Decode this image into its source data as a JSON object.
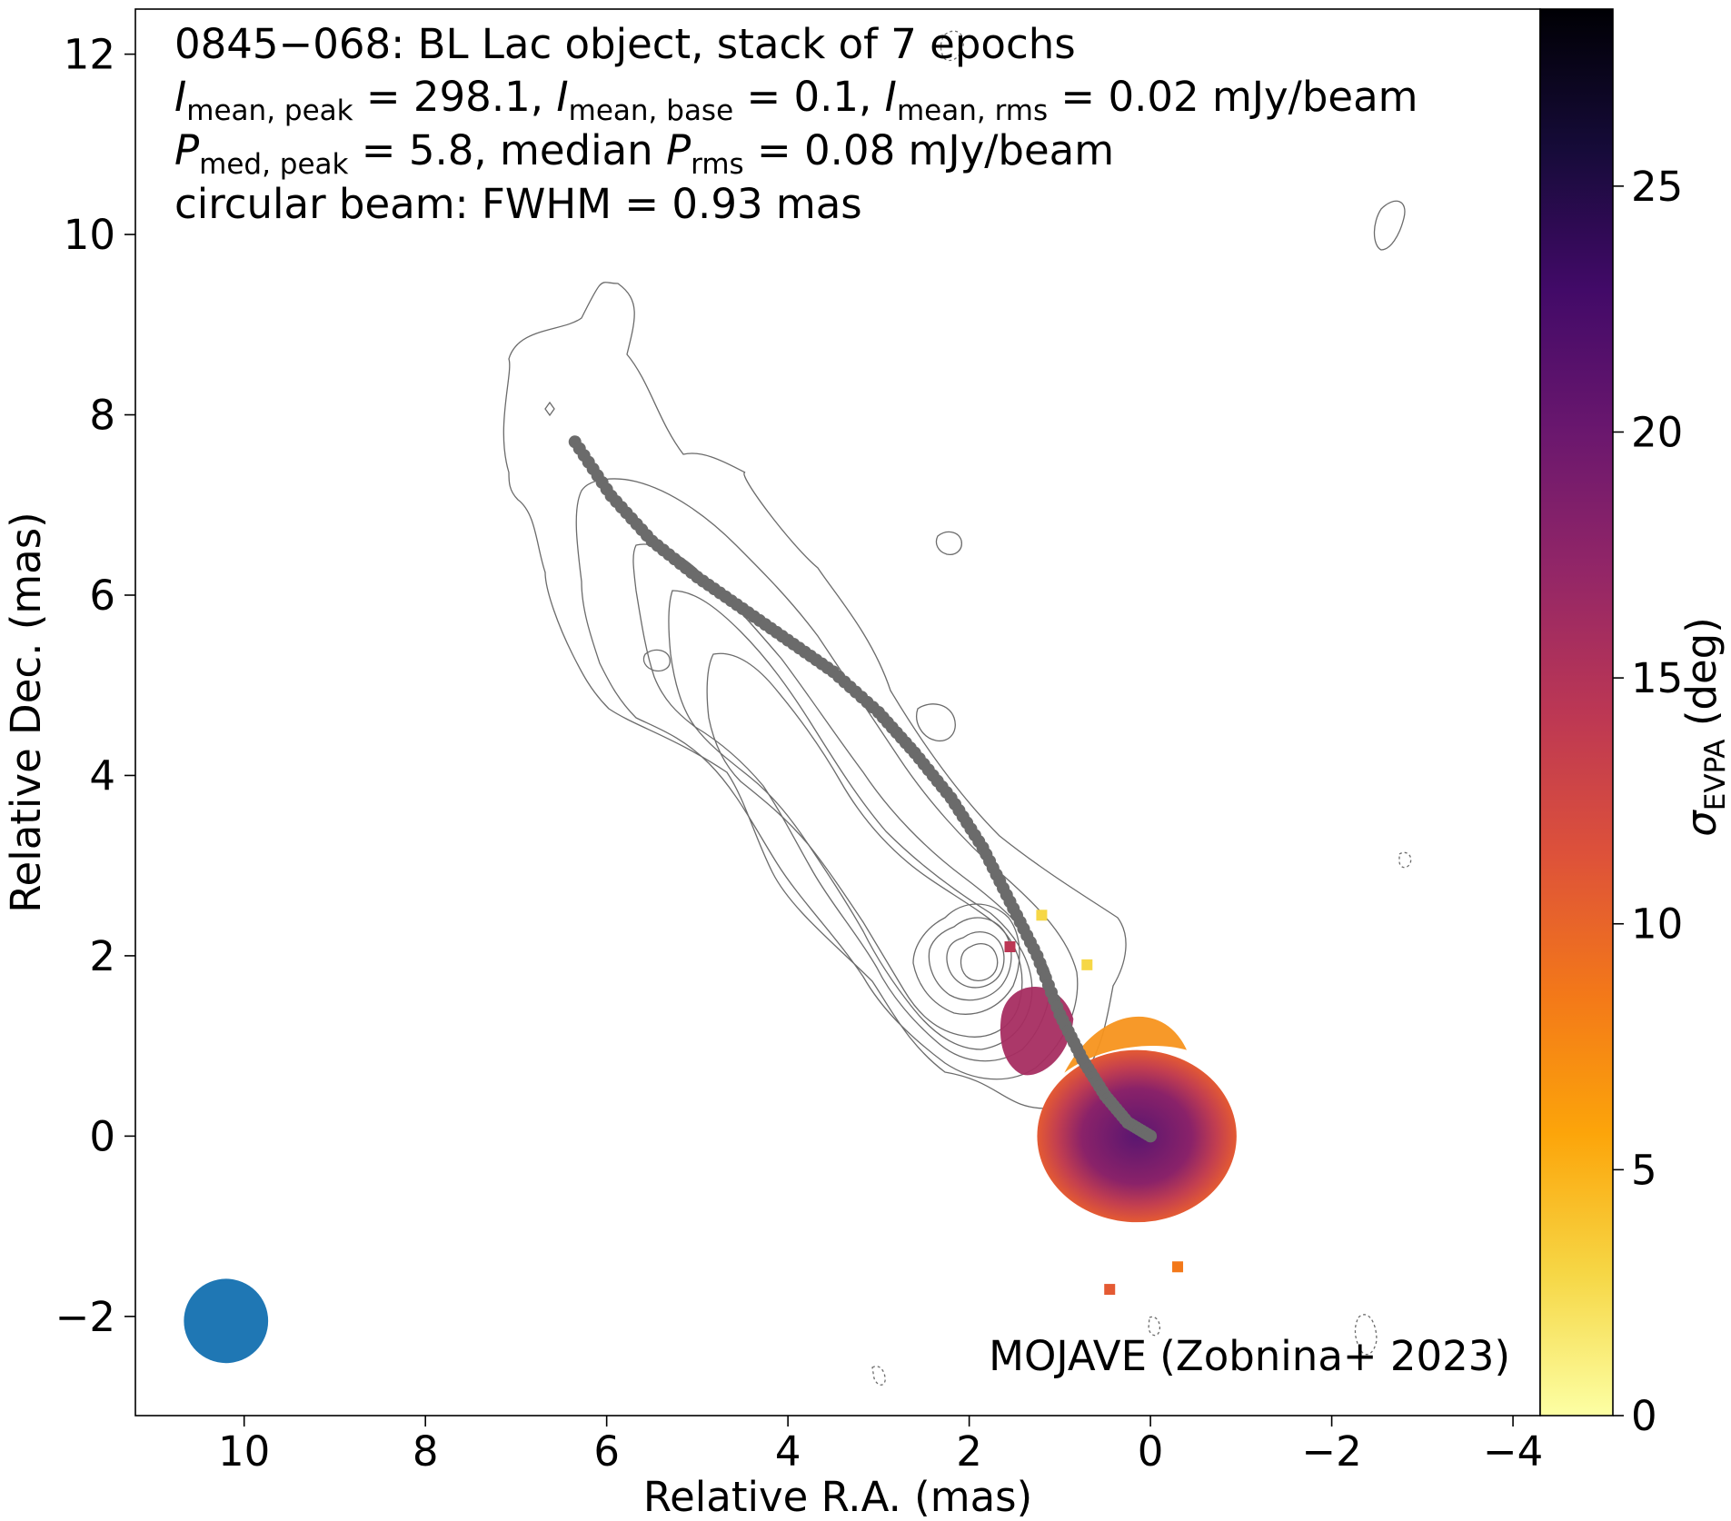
{
  "chart_data": {
    "type": "heatmap",
    "title_lines": [
      "0845−068: BL Lac object, stack of 7 epochs",
      "I_mean,peak = 298.1, I_mean,base = 0.1, I_mean,rms = 0.02 mJy/beam",
      "P_med,peak = 5.8, median P_rms = 0.08 mJy/beam",
      "circular beam: FWHM = 0.93 mas"
    ],
    "annotation": {
      "line1_pre": "0845−068: BL Lac object, stack of 7 epochs",
      "I": "I",
      "sub_peak": "mean, peak",
      "val_peak": " = 298.1, ",
      "sub_base": "mean, base",
      "val_base": " = 0.1, ",
      "sub_rms": "mean, rms",
      "val_rms": " = 0.02 mJy/beam",
      "P": "P",
      "sub_pmed": "med, peak",
      "val_pmed": " = 5.8, median ",
      "sub_prms": "rms",
      "val_prms": " = 0.08 mJy/beam",
      "line4": "circular beam: FWHM = 0.93 mas"
    },
    "credit": "MOJAVE (Zobnina+ 2023)",
    "xlabel": "Relative R.A. (mas)",
    "ylabel": "Relative Dec. (mas)",
    "colorbar_label": "σ",
    "colorbar_label_sub": "EVPA",
    "colorbar_label_unit": " (deg)",
    "xlim": [
      11.2,
      -4.3
    ],
    "ylim": [
      -3.1,
      12.5
    ],
    "xticks": [
      10,
      8,
      6,
      4,
      2,
      0,
      -2,
      -4
    ],
    "xtick_labels": [
      "10",
      "8",
      "6",
      "4",
      "2",
      "0",
      "−2",
      "−4"
    ],
    "yticks": [
      -2,
      0,
      2,
      4,
      6,
      8,
      10,
      12
    ],
    "ytick_labels": [
      "−2",
      "0",
      "2",
      "4",
      "6",
      "8",
      "10",
      "12"
    ],
    "colorbar_range": [
      0,
      28.6
    ],
    "colorbar_ticks": [
      0,
      5,
      10,
      15,
      20,
      25
    ],
    "colorbar_tick_labels": [
      "0",
      "5",
      "10",
      "15",
      "20",
      "25"
    ],
    "colormap": "inferno_r",
    "beam": {
      "x": 10.2,
      "y": -2.05,
      "fwhm": 0.93,
      "color": "#1f77b4"
    },
    "ridgeline": {
      "color": "#6b6b6b",
      "points": [
        [
          6.35,
          7.7
        ],
        [
          5.95,
          7.1
        ],
        [
          5.5,
          6.6
        ],
        [
          5.0,
          6.2
        ],
        [
          4.5,
          5.85
        ],
        [
          4.0,
          5.5
        ],
        [
          3.5,
          5.15
        ],
        [
          3.0,
          4.7
        ],
        [
          2.6,
          4.25
        ],
        [
          2.2,
          3.75
        ],
        [
          1.85,
          3.2
        ],
        [
          1.55,
          2.6
        ],
        [
          1.25,
          2.0
        ],
        [
          1.0,
          1.35
        ],
        [
          0.75,
          0.85
        ],
        [
          0.5,
          0.45
        ],
        [
          0.25,
          0.15
        ],
        [
          0.0,
          0.0
        ]
      ]
    },
    "polarization_map": {
      "center": [
        0.15,
        0.0
      ],
      "radii": [
        1.1,
        0.95
      ]
    },
    "contours": {
      "color": "#6b6b6b",
      "levels_mjy_per_beam": [
        0.1,
        0.2,
        0.4,
        0.8,
        1.6,
        3.2,
        6.4,
        12.8,
        25.6,
        51.2,
        102.4,
        204.8
      ]
    }
  }
}
